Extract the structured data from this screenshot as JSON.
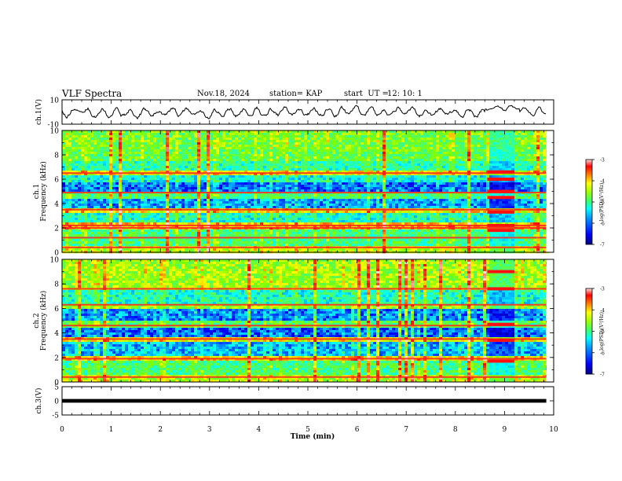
{
  "header": {
    "title": "VLF Spectra",
    "date": "Nov.18, 2024",
    "station": "station= KAP",
    "start_label": "start  UT =",
    "start_value": "12: 10: 1"
  },
  "colors": {
    "line": "#000000",
    "colormap": [
      "#00007f",
      "#0000ff",
      "#0080ff",
      "#00ffff",
      "#40ff80",
      "#80ff00",
      "#ffff00",
      "#ff8000",
      "#ff0000",
      "#ffd8d8"
    ]
  },
  "chart_data": {
    "type": "heatmap",
    "title": "VLF Spectra",
    "xlabel": "Time (min)",
    "x_ticks": [
      "0",
      "1",
      "2",
      "3",
      "4",
      "5",
      "6",
      "7",
      "8",
      "9",
      "10"
    ],
    "xlim": [
      0,
      10
    ],
    "data_end_min": 9.85,
    "panels": [
      {
        "name": "ch1-waveform",
        "type": "line",
        "ylabel": "ch.1(V)",
        "y_ticks": [
          "10",
          "-10"
        ],
        "ylim": [
          -10,
          10
        ]
      },
      {
        "name": "ch1-spectrogram",
        "type": "heatmap",
        "ylabel": "ch.1",
        "ylabel2": "Frequency (kHz)",
        "y_ticks": [
          "0",
          "2",
          "4",
          "6",
          "8",
          "10"
        ],
        "ylim": [
          0,
          10
        ],
        "bands": [
          {
            "lo": 0.0,
            "hi": 0.6,
            "level": -4.6
          },
          {
            "lo": 0.6,
            "hi": 1.8,
            "level": -5.2
          },
          {
            "lo": 1.8,
            "hi": 2.4,
            "level": -4.2
          },
          {
            "lo": 2.4,
            "hi": 3.3,
            "level": -5.5
          },
          {
            "lo": 3.3,
            "hi": 3.7,
            "level": -4.3
          },
          {
            "lo": 3.7,
            "hi": 4.3,
            "level": -6.0
          },
          {
            "lo": 4.3,
            "hi": 5.0,
            "level": -5.2
          },
          {
            "lo": 5.0,
            "hi": 5.7,
            "level": -6.2
          },
          {
            "lo": 5.7,
            "hi": 6.3,
            "level": -5.6
          },
          {
            "lo": 6.3,
            "hi": 6.7,
            "level": -4.4
          },
          {
            "lo": 6.7,
            "hi": 7.5,
            "level": -5.4
          },
          {
            "lo": 7.5,
            "hi": 8.5,
            "level": -5.0
          },
          {
            "lo": 8.5,
            "hi": 10.0,
            "level": -4.9
          }
        ],
        "lines_khz": [
          0.4,
          1.2,
          2.0,
          2.2,
          3.5,
          4.9,
          6.5
        ],
        "event_min": [
          8.65,
          9.2
        ],
        "event_lines_khz": [
          1.8,
          2.2,
          3.3,
          4.5,
          5.0,
          6.0,
          6.6
        ]
      },
      {
        "name": "ch2-spectrogram",
        "type": "heatmap",
        "ylabel": "ch.2",
        "ylabel2": "Frequency (kHz)",
        "y_ticks": [
          "0",
          "2",
          "4",
          "6",
          "8",
          "10"
        ],
        "ylim": [
          0,
          10
        ],
        "bands": [
          {
            "lo": 0.0,
            "hi": 0.6,
            "level": -4.6
          },
          {
            "lo": 0.6,
            "hi": 1.8,
            "level": -5.2
          },
          {
            "lo": 1.8,
            "hi": 2.2,
            "level": -4.3
          },
          {
            "lo": 2.2,
            "hi": 3.3,
            "level": -5.9
          },
          {
            "lo": 3.3,
            "hi": 3.7,
            "level": -4.4
          },
          {
            "lo": 3.7,
            "hi": 4.4,
            "level": -6.2
          },
          {
            "lo": 4.4,
            "hi": 5.0,
            "level": -5.1
          },
          {
            "lo": 5.0,
            "hi": 6.0,
            "level": -6.1
          },
          {
            "lo": 6.0,
            "hi": 6.4,
            "level": -4.8
          },
          {
            "lo": 6.4,
            "hi": 7.5,
            "level": -5.5
          },
          {
            "lo": 7.5,
            "hi": 10.0,
            "level": -4.7
          }
        ],
        "lines_khz": [
          0.4,
          1.9,
          3.5,
          4.6,
          6.3,
          7.6
        ],
        "event_min": [
          8.65,
          9.2
        ],
        "event_lines_khz": [
          1.7,
          3.4,
          4.7,
          7.6,
          9.0
        ]
      },
      {
        "name": "ch3-waveform",
        "type": "line",
        "ylabel": "ch.3(V)",
        "y_ticks": [
          "5",
          "0",
          "-5"
        ],
        "ylim": [
          -5,
          5
        ],
        "level": 0,
        "thickness_v": 1.3
      }
    ],
    "colorbar": {
      "label": "log(PSD)(V²/Hz)",
      "range": [
        -7,
        -3
      ],
      "ticks": [
        "-3",
        "-4",
        "-5",
        "-6",
        "-7"
      ]
    }
  }
}
